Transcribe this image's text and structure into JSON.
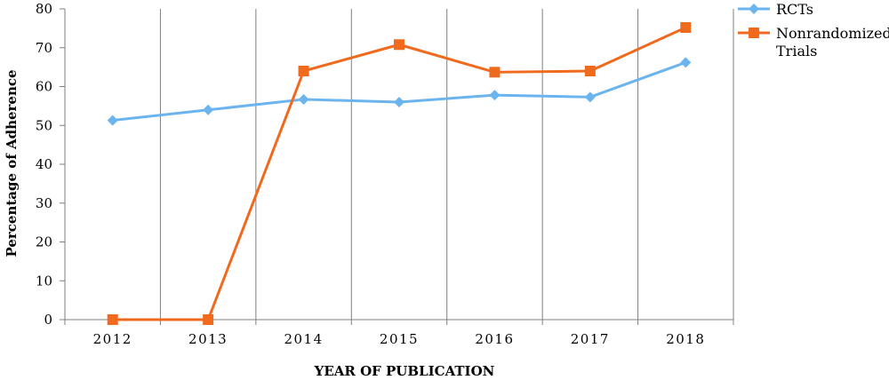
{
  "chart_data": {
    "type": "line",
    "title": "",
    "xlabel": "YEAR OF PUBLICATION",
    "ylabel": "Percentage of Adherence",
    "categories": [
      "2012",
      "2013",
      "2014",
      "2015",
      "2016",
      "2017",
      "2018"
    ],
    "ylim": [
      0,
      80
    ],
    "yticks": [
      0,
      10,
      20,
      30,
      40,
      50,
      60,
      70,
      80
    ],
    "grid": "vertical",
    "legend_position": "top-right",
    "series": [
      {
        "name": "RCTs",
        "values": [
          51.3,
          54.0,
          56.7,
          56.0,
          57.8,
          57.3,
          66.2
        ],
        "color": "#6CB4EE",
        "marker": "diamond"
      },
      {
        "name_lines": [
          "Nonrandomized",
          "Trials"
        ],
        "values": [
          0,
          0,
          64.0,
          70.8,
          63.7,
          64.0,
          75.2
        ],
        "color": "#F06A1E",
        "marker": "square"
      }
    ]
  }
}
